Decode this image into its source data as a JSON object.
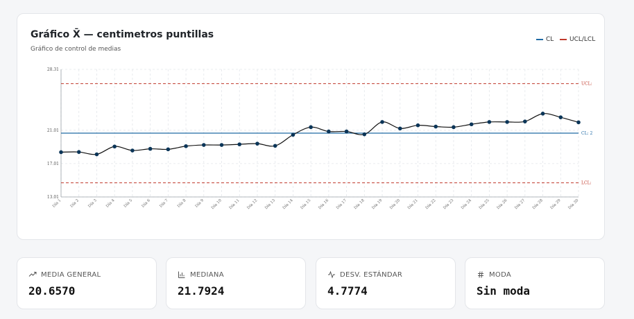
{
  "chart_card": {
    "title": "Gráfico X̄ — centimetros puntillas",
    "subtitle": "Gráfico de control de medias",
    "legend_cl": "CL",
    "legend_ucl_lcl": "UCL/LCL"
  },
  "chart_data": {
    "type": "line",
    "title": "Gráfico X̄ — centimetros puntillas",
    "subtitle": "Gráfico de control de medias",
    "categories": [
      "Día 1",
      "Día 2",
      "Día 3",
      "Día 4",
      "Día 5",
      "Día 6",
      "Día 7",
      "Día 8",
      "Día 9",
      "Día 10",
      "Día 11",
      "Día 12",
      "Día 13",
      "Día 14",
      "Día 15",
      "Día 16",
      "Día 17",
      "Día 18",
      "Día 19",
      "Día 20",
      "Día 21",
      "Día 22",
      "Día 23",
      "Día 24",
      "Día 25",
      "Día 26",
      "Día 27",
      "Día 28",
      "Día 29",
      "Día 30"
    ],
    "values": [
      18.38,
      18.4,
      18.12,
      19.06,
      18.58,
      18.78,
      18.72,
      19.1,
      19.24,
      19.24,
      19.32,
      19.4,
      19.14,
      20.46,
      21.38,
      20.86,
      20.86,
      20.52,
      22.0,
      21.22,
      21.6,
      21.45,
      21.38,
      21.72,
      22.0,
      22.0,
      22.06,
      23.0,
      22.56,
      21.96
    ],
    "ylim": [
      13.01,
      28.31
    ],
    "yticks": [
      "13.01",
      "17.01",
      "21.01",
      "28.31"
    ],
    "cl": 20.66,
    "ucl": 26.6,
    "lcl": 14.7,
    "cl_label": "CL: 2",
    "ucl_label": "UCL:",
    "lcl_label": "LCL:",
    "colors": {
      "line": "#111111",
      "point": "#0b3558",
      "cl": "#1f6aa5",
      "limits": "#c0392b",
      "grid": "#e3e6ea"
    },
    "grid": true,
    "legend_position": "top-right"
  },
  "stats": [
    {
      "label": "MEDIA GENERAL",
      "value": "20.6570",
      "icon": "trending-up-icon"
    },
    {
      "label": "MEDIANA",
      "value": "21.7924",
      "icon": "bar-chart-icon"
    },
    {
      "label": "DESV. ESTÁNDAR",
      "value": "4.7774",
      "icon": "activity-icon"
    },
    {
      "label": "MODA",
      "value": "Sin moda",
      "icon": "hash-icon"
    }
  ]
}
